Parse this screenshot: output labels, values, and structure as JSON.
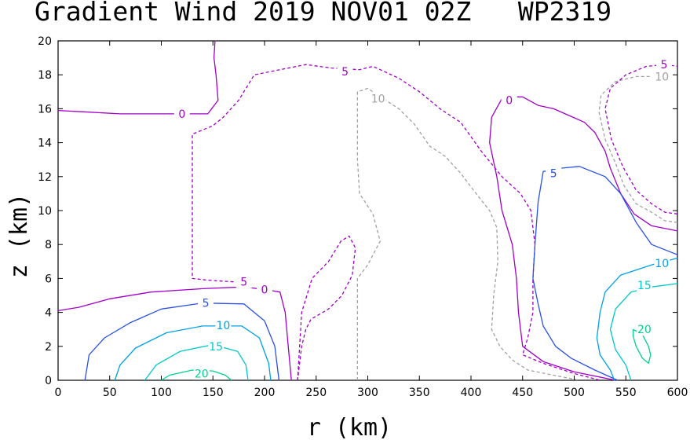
{
  "chart_data": {
    "type": "contour",
    "title": "Gradient Wind 2019 NOV01 02Z   WP2319",
    "xlabel": "r (km)",
    "ylabel": "z (km)",
    "xlim": [
      0,
      600
    ],
    "ylim": [
      0,
      20
    ],
    "xticks": [
      0,
      50,
      100,
      150,
      200,
      250,
      300,
      350,
      400,
      450,
      500,
      550,
      600
    ],
    "yticks": [
      0,
      2,
      4,
      6,
      8,
      10,
      12,
      14,
      16,
      18,
      20
    ],
    "colors": {
      "neg10": "#a0a0a0",
      "neg5": "#a000c8",
      "zero": "#a000c8",
      "five": "#2850e6",
      "ten": "#00a0e6",
      "fifteen": "#00c8c8",
      "twenty": "#00d28c"
    },
    "contours": [
      {
        "level": -10,
        "color_key": "neg10",
        "dashed": true,
        "label_text": "10",
        "label_at": [
          310,
          16.6
        ],
        "points": [
          [
            290,
            0
          ],
          [
            290,
            6
          ],
          [
            300,
            6.8
          ],
          [
            312,
            8.2
          ],
          [
            305,
            9.8
          ],
          [
            292,
            11
          ],
          [
            290,
            13
          ],
          [
            290,
            17
          ],
          [
            300,
            17.2
          ],
          [
            315,
            16.6
          ],
          [
            330,
            16
          ],
          [
            345,
            15.1
          ],
          [
            360,
            13.8
          ],
          [
            375,
            13.2
          ],
          [
            390,
            12.2
          ],
          [
            405,
            11
          ],
          [
            418,
            10
          ],
          [
            425,
            9
          ],
          [
            426,
            7
          ],
          [
            422,
            5
          ],
          [
            420,
            3
          ],
          [
            428,
            2
          ],
          [
            440,
            1.2
          ],
          [
            455,
            0.6
          ],
          [
            480,
            0.3
          ],
          [
            505,
            0
          ]
        ]
      },
      {
        "level": -10,
        "color_key": "neg10",
        "dashed": true,
        "label_text": "10",
        "label_at": [
          585,
          17.9
        ],
        "points": [
          [
            600,
            9.3
          ],
          [
            588,
            9.4
          ],
          [
            575,
            9.9
          ],
          [
            560,
            10.4
          ],
          [
            548,
            11.5
          ],
          [
            540,
            12.8
          ],
          [
            530,
            14.2
          ],
          [
            524,
            15.8
          ],
          [
            526,
            16.8
          ],
          [
            540,
            17.6
          ],
          [
            560,
            17.9
          ],
          [
            575,
            17.9
          ]
        ]
      },
      {
        "level": -5,
        "color_key": "neg5",
        "dashed": true,
        "label_text": "5",
        "label_at": [
          278,
          18.2
        ],
        "points": [
          [
            232,
            0
          ],
          [
            234,
            2
          ],
          [
            236,
            4
          ],
          [
            246,
            6
          ],
          [
            262,
            7
          ],
          [
            274,
            8.2
          ],
          [
            282,
            8.5
          ],
          [
            288,
            7.8
          ],
          [
            285,
            6.2
          ],
          [
            275,
            5
          ],
          [
            262,
            4.2
          ],
          [
            245,
            3.6
          ],
          [
            240,
            3
          ],
          [
            236,
            2
          ],
          [
            232,
            0
          ]
        ]
      },
      {
        "level": -5,
        "color_key": "neg5",
        "dashed": true,
        "label_text": "5",
        "label_at": [
          180,
          5.8
        ],
        "points": [
          [
            170,
            5.8
          ],
          [
            145,
            5.9
          ],
          [
            130,
            6
          ],
          [
            130,
            11
          ],
          [
            130,
            14.5
          ],
          [
            150,
            15
          ],
          [
            160,
            15.5
          ],
          [
            175,
            16.5
          ],
          [
            190,
            18
          ],
          [
            215,
            18.3
          ],
          [
            240,
            18.6
          ],
          [
            265,
            18.4
          ],
          [
            292,
            18.3
          ],
          [
            305,
            18.5
          ],
          [
            330,
            17.8
          ],
          [
            350,
            17
          ],
          [
            370,
            16
          ],
          [
            390,
            15.2
          ],
          [
            410,
            13.5
          ],
          [
            430,
            12
          ],
          [
            448,
            11
          ],
          [
            458,
            10
          ],
          [
            462,
            8
          ],
          [
            460,
            6
          ],
          [
            460,
            4
          ],
          [
            455,
            2.5
          ],
          [
            450,
            1.5
          ],
          [
            470,
            1
          ],
          [
            500,
            0.4
          ],
          [
            525,
            0
          ]
        ]
      },
      {
        "level": -5,
        "color_key": "neg5",
        "dashed": true,
        "label_text": "5",
        "label_at": [
          587,
          18.6
        ],
        "points": [
          [
            600,
            9.8
          ],
          [
            588,
            9.9
          ],
          [
            575,
            10.4
          ],
          [
            560,
            11.2
          ],
          [
            547,
            12.6
          ],
          [
            536,
            14.2
          ],
          [
            530,
            16
          ],
          [
            535,
            17.2
          ],
          [
            550,
            18
          ],
          [
            570,
            18.5
          ],
          [
            588,
            18.6
          ],
          [
            600,
            18.5
          ]
        ]
      },
      {
        "level": 0,
        "color_key": "zero",
        "dashed": false,
        "label_text": "0",
        "label_at": [
          120,
          15.7
        ],
        "points": [
          [
            0,
            15.9
          ],
          [
            30,
            15.8
          ],
          [
            60,
            15.7
          ],
          [
            90,
            15.7
          ],
          [
            120,
            15.7
          ],
          [
            145,
            15.7
          ],
          [
            155,
            16.5
          ],
          [
            153,
            18
          ],
          [
            151,
            19
          ],
          [
            152,
            20
          ]
        ]
      },
      {
        "level": 0,
        "color_key": "zero",
        "dashed": false,
        "label_text": "0",
        "label_at": [
          200,
          5.35
        ],
        "points": [
          [
            0,
            4.1
          ],
          [
            20,
            4.3
          ],
          [
            50,
            4.8
          ],
          [
            90,
            5.2
          ],
          [
            140,
            5.4
          ],
          [
            180,
            5.5
          ],
          [
            200,
            5.35
          ],
          [
            215,
            5.2
          ],
          [
            220,
            4
          ],
          [
            223,
            2
          ],
          [
            226,
            0
          ]
        ]
      },
      {
        "level": 0,
        "color_key": "zero",
        "dashed": false,
        "label_text": "0",
        "label_at": [
          437,
          16.5
        ],
        "points": [
          [
            600,
            8.8
          ],
          [
            575,
            9.1
          ],
          [
            558,
            9.8
          ],
          [
            545,
            11
          ],
          [
            535,
            12.5
          ],
          [
            530,
            13.5
          ],
          [
            520,
            14.6
          ],
          [
            510,
            15.2
          ],
          [
            495,
            15.6
          ],
          [
            480,
            16
          ],
          [
            465,
            16.2
          ],
          [
            450,
            16.7
          ],
          [
            440,
            16.7
          ],
          [
            430,
            16.6
          ],
          [
            420,
            15.5
          ],
          [
            418,
            14
          ],
          [
            425,
            12
          ],
          [
            430,
            10
          ],
          [
            440,
            8
          ],
          [
            444,
            6
          ],
          [
            446,
            4
          ],
          [
            450,
            2
          ],
          [
            470,
            1.1
          ],
          [
            500,
            0.5
          ],
          [
            540,
            0
          ]
        ]
      },
      {
        "level": 5,
        "color_key": "five",
        "dashed": false,
        "label_text": "5",
        "label_at": [
          143,
          4.55
        ],
        "points": [
          [
            26,
            0
          ],
          [
            30,
            1.5
          ],
          [
            45,
            2.5
          ],
          [
            70,
            3.4
          ],
          [
            100,
            4.2
          ],
          [
            140,
            4.55
          ],
          [
            180,
            4.5
          ],
          [
            200,
            3.5
          ],
          [
            210,
            2
          ],
          [
            214,
            0
          ]
        ]
      },
      {
        "level": 5,
        "color_key": "five",
        "dashed": false,
        "label_text": "5",
        "label_at": [
          480,
          12.2
        ],
        "points": [
          [
            600,
            7.4
          ],
          [
            575,
            8
          ],
          [
            560,
            9.3
          ],
          [
            545,
            11
          ],
          [
            530,
            12
          ],
          [
            505,
            12.6
          ],
          [
            488,
            12.5
          ],
          [
            470,
            12.3
          ],
          [
            465,
            10.5
          ],
          [
            462,
            8
          ],
          [
            460,
            6
          ],
          [
            465,
            4.5
          ],
          [
            470,
            3.2
          ],
          [
            482,
            2
          ],
          [
            497,
            1.3
          ],
          [
            520,
            0.6
          ],
          [
            542,
            0
          ]
        ]
      },
      {
        "level": 10,
        "color_key": "ten",
        "dashed": false,
        "label_text": "10",
        "label_at": [
          160,
          3.25
        ],
        "points": [
          [
            55,
            0
          ],
          [
            60,
            0.9
          ],
          [
            75,
            1.9
          ],
          [
            105,
            2.8
          ],
          [
            140,
            3.2
          ],
          [
            178,
            3.2
          ],
          [
            195,
            2.5
          ],
          [
            204,
            1
          ],
          [
            206,
            0
          ]
        ]
      },
      {
        "level": 10,
        "color_key": "ten",
        "dashed": false,
        "label_text": "10",
        "label_at": [
          585,
          6.9
        ],
        "points": [
          [
            600,
            7.2
          ],
          [
            575,
            6.8
          ],
          [
            545,
            6.2
          ],
          [
            530,
            5.2
          ],
          [
            525,
            4
          ],
          [
            522,
            2.5
          ],
          [
            525,
            1.5
          ],
          [
            535,
            0.6
          ],
          [
            539,
            0
          ]
        ]
      },
      {
        "level": 15,
        "color_key": "fifteen",
        "dashed": false,
        "label_text": "15",
        "label_at": [
          153,
          2.0
        ],
        "points": [
          [
            84,
            0
          ],
          [
            95,
            0.9
          ],
          [
            118,
            1.7
          ],
          [
            150,
            2.1
          ],
          [
            174,
            1.7
          ],
          [
            182,
            0.9
          ],
          [
            184,
            0
          ]
        ]
      },
      {
        "level": 15,
        "color_key": "fifteen",
        "dashed": false,
        "label_text": "15",
        "label_at": [
          568,
          5.6
        ],
        "points": [
          [
            600,
            5.7
          ],
          [
            575,
            5.5
          ],
          [
            555,
            5.2
          ],
          [
            540,
            4.2
          ],
          [
            535,
            3
          ],
          [
            540,
            1.8
          ],
          [
            550,
            0.9
          ],
          [
            555,
            0
          ]
        ]
      },
      {
        "level": 20,
        "color_key": "twenty",
        "dashed": false,
        "label_text": "20",
        "label_at": [
          139,
          0.4
        ],
        "points": [
          [
            100,
            0
          ],
          [
            108,
            0.3
          ],
          [
            130,
            0.6
          ],
          [
            150,
            0.55
          ],
          [
            162,
            0.3
          ],
          [
            168,
            0
          ]
        ]
      },
      {
        "level": 20,
        "color_key": "twenty",
        "dashed": false,
        "label_text": "20",
        "label_at": [
          568,
          3.0
        ],
        "points": [
          [
            557,
            3.0
          ],
          [
            566,
            2.7
          ],
          [
            572,
            2.0
          ],
          [
            574,
            1.5
          ],
          [
            572,
            1.0
          ],
          [
            566,
            1.3
          ],
          [
            560,
            2.0
          ],
          [
            557,
            2.6
          ],
          [
            557,
            3.0
          ]
        ]
      }
    ]
  }
}
